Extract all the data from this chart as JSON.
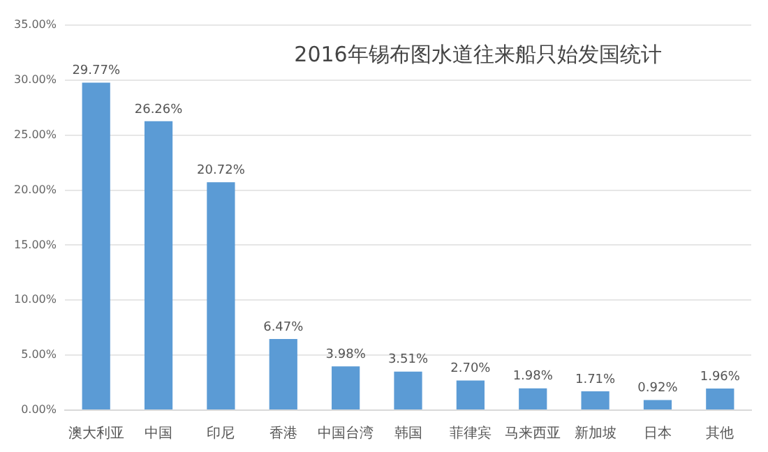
{
  "chart_data": {
    "type": "bar",
    "title": "2016年锡布图水道往来船只始发国统计",
    "categories": [
      "澳大利亚",
      "中国",
      "印尼",
      "香港",
      "中国台湾",
      "韩国",
      "菲律宾",
      "马来西亚",
      "新加坡",
      "日本",
      "其他"
    ],
    "values": [
      29.77,
      26.26,
      20.72,
      6.47,
      3.98,
      3.51,
      2.7,
      1.98,
      1.71,
      0.92,
      1.96
    ],
    "value_labels": [
      "29.77%",
      "26.26%",
      "20.72%",
      "6.47%",
      "3.98%",
      "3.51%",
      "2.70%",
      "1.98%",
      "1.71%",
      "0.92%",
      "1.96%"
    ],
    "color": "#5b9bd5",
    "ylim": [
      0,
      35
    ],
    "yticks": [
      {
        "value": 0,
        "label": "0.00%"
      },
      {
        "value": 5,
        "label": "5.00%"
      },
      {
        "value": 10,
        "label": "10.00%"
      },
      {
        "value": 15,
        "label": "15.00%"
      },
      {
        "value": 20,
        "label": "20.00%"
      },
      {
        "value": 25,
        "label": "25.00%"
      },
      {
        "value": 30,
        "label": "30.00%"
      },
      {
        "value": 35,
        "label": "35.00%"
      }
    ],
    "grid": "y",
    "legend": false
  }
}
